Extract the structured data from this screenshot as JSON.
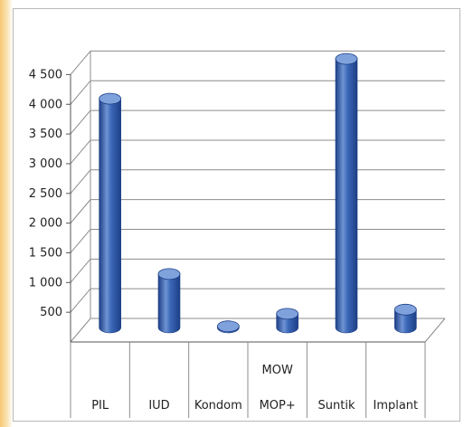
{
  "chart_data": {
    "type": "bar",
    "style": "3d-cylinder",
    "categories": [
      "PIL",
      "IUD",
      "Kondom",
      "MOW MOP+",
      "Suntik",
      "Implant"
    ],
    "category_label_lines": [
      [
        "PIL"
      ],
      [
        "IUD"
      ],
      [
        "Kondom"
      ],
      [
        "MOW",
        "MOP+"
      ],
      [
        "Suntik"
      ],
      [
        "Implant"
      ]
    ],
    "values": [
      3850,
      900,
      20,
      230,
      4520,
      300
    ],
    "yticks": [
      500,
      1000,
      1500,
      2000,
      2500,
      3000,
      3500,
      4000,
      4500
    ],
    "ytick_labels": [
      "500",
      "1 000",
      "1 500",
      "2 000",
      "2 500",
      "3 000",
      "3 500",
      "4 000",
      "4 500"
    ],
    "ylim": [
      0,
      4750
    ],
    "grid": true,
    "legend": "none",
    "title": "",
    "xlabel": "",
    "ylabel": "",
    "colors": {
      "bar": "#3b68b8",
      "bar_dark": "#1d3f86",
      "bar_light": "#7fa2dc",
      "grid": "#8c8c8c"
    }
  }
}
